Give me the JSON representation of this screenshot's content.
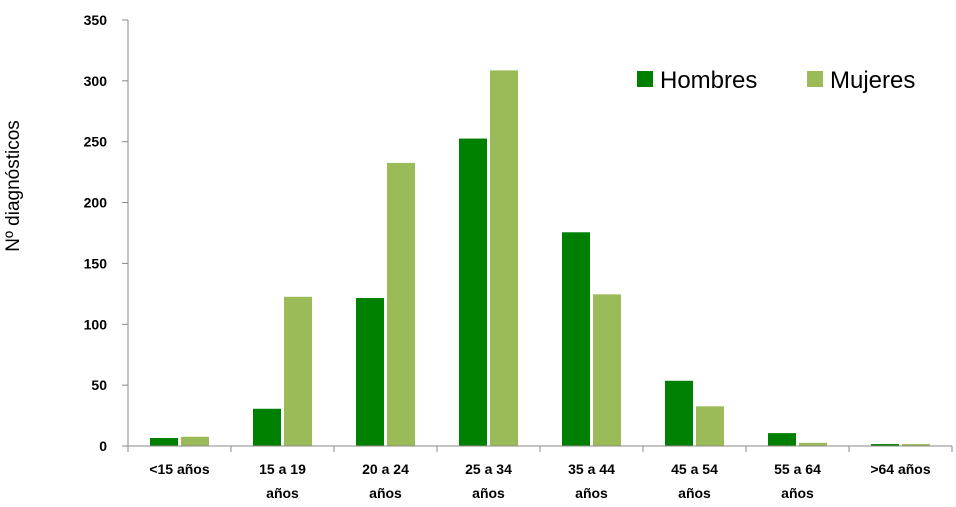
{
  "chart_data": {
    "type": "bar",
    "title": "",
    "xlabel": "",
    "ylabel": "Nº diagnósticos",
    "ylim": [
      0,
      350
    ],
    "yticks": [
      0,
      50,
      100,
      150,
      200,
      250,
      300,
      350
    ],
    "grid": false,
    "legend_position": "top-right",
    "categories": [
      [
        "<15 años"
      ],
      [
        "15 a 19",
        "años"
      ],
      [
        "20 a 24",
        "años"
      ],
      [
        "25 a 34",
        "años"
      ],
      [
        "35 a 44",
        "años"
      ],
      [
        "45 a 54",
        "años"
      ],
      [
        "55 a 64",
        "años"
      ],
      [
        ">64 años"
      ]
    ],
    "series": [
      {
        "name": "Hombres",
        "color": "#008000",
        "values": [
          7,
          31,
          122,
          253,
          176,
          54,
          11,
          2
        ]
      },
      {
        "name": "Mujeres",
        "color": "#9BBB59",
        "values": [
          8,
          123,
          233,
          309,
          125,
          33,
          3,
          2
        ]
      }
    ]
  }
}
